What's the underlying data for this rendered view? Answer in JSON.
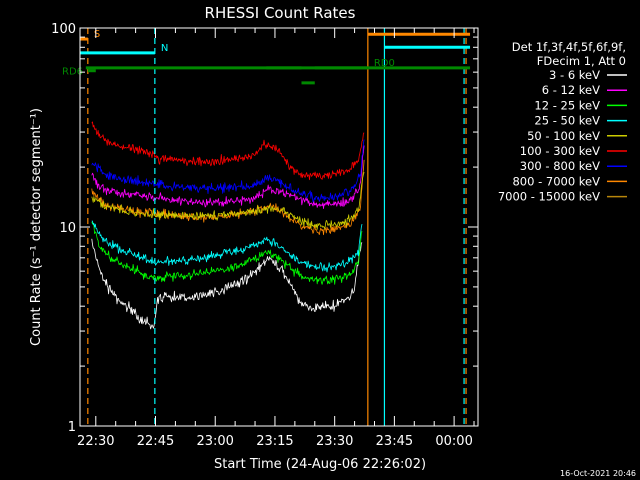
{
  "chart_data": {
    "type": "line",
    "title": "RHESSI Count Rates",
    "xlabel": "Start Time (24-Aug-06 22:26:02)",
    "ylabel": "Count Rate (s⁻¹ detector segment⁻¹)",
    "y_scale": "log",
    "ylim": [
      1,
      100
    ],
    "y_ticks": [
      "1",
      "10",
      "100"
    ],
    "x_ticks": [
      "22:30",
      "22:45",
      "23:00",
      "23:15",
      "23:30",
      "23:45",
      "00:00"
    ],
    "x_range": [
      "22:26:02",
      "00:06"
    ],
    "grid": false,
    "legend_position": "right",
    "legend_header": [
      "Det 1f,3f,4f,5f,6f,9f,",
      "FDecim 1, Att 0"
    ],
    "timestamp": "16-Oct-2021 20:46",
    "series": [
      {
        "name": "3 - 6 keV",
        "color": "#ffffff",
        "x": [
          "22:29",
          "22:31",
          "22:33",
          "22:35",
          "22:37",
          "22:39",
          "22:41",
          "22:43",
          "22:44:30",
          "22:45:30",
          "22:48",
          "22:52",
          "22:56",
          "23:00",
          "23:04",
          "23:08",
          "23:11",
          "23:13",
          "23:15",
          "23:17",
          "23:19",
          "23:21",
          "23:23",
          "23:25",
          "23:27",
          "23:29",
          "23:31",
          "23:33",
          "23:35",
          "23:37"
        ],
        "y": [
          8.5,
          6.0,
          5.0,
          4.5,
          4.1,
          3.8,
          3.5,
          3.3,
          3.1,
          4.3,
          4.5,
          4.4,
          4.5,
          4.7,
          5.0,
          5.5,
          6.2,
          7.0,
          6.6,
          6.0,
          5.1,
          4.3,
          4.0,
          3.9,
          4.0,
          4.0,
          4.1,
          4.3,
          4.8,
          9.0
        ]
      },
      {
        "name": "6 - 12 keV",
        "color": "#ff00ff",
        "x": [
          "22:29",
          "22:31",
          "22:34",
          "22:38",
          "22:42",
          "22:46",
          "22:50",
          "22:55",
          "23:00",
          "23:05",
          "23:10",
          "23:13",
          "23:16",
          "23:19",
          "23:22",
          "23:26",
          "23:30",
          "23:34",
          "23:36:30",
          "23:37:30"
        ],
        "y": [
          18,
          16,
          15,
          14.5,
          14.3,
          14,
          13.5,
          13.3,
          13.3,
          13.5,
          14,
          15.5,
          15.2,
          14.5,
          13.5,
          13,
          13,
          13.5,
          16,
          28
        ]
      },
      {
        "name": "12 - 25 keV",
        "color": "#00ff00",
        "x": [
          "22:29",
          "22:31",
          "22:34",
          "22:38",
          "22:42",
          "22:45",
          "22:48",
          "22:52",
          "22:56",
          "23:00",
          "23:04",
          "23:08",
          "23:11",
          "23:13",
          "23:15",
          "23:17",
          "23:19",
          "23:22",
          "23:25",
          "23:28",
          "23:31",
          "23:34",
          "23:36",
          "23:37"
        ],
        "y": [
          10.5,
          8,
          7,
          6.3,
          5.8,
          5.5,
          5.6,
          5.7,
          5.8,
          6,
          6.3,
          6.7,
          7,
          7.4,
          7.2,
          6.8,
          6.2,
          5.6,
          5.4,
          5.4,
          5.5,
          5.8,
          6.5,
          10
        ]
      },
      {
        "name": "25 - 50 keV",
        "color": "#00ffff",
        "x": [
          "22:29",
          "22:31",
          "22:34",
          "22:38",
          "22:42",
          "22:45",
          "22:48",
          "22:52",
          "22:56",
          "23:00",
          "23:04",
          "23:08",
          "23:11",
          "23:13",
          "23:15",
          "23:17",
          "23:19",
          "23:22",
          "23:25",
          "23:28",
          "23:31",
          "23:34",
          "23:36",
          "23:37"
        ],
        "y": [
          11,
          9,
          8,
          7.5,
          7,
          6.7,
          6.7,
          6.8,
          6.9,
          7.2,
          7.5,
          7.9,
          8.2,
          8.5,
          8.3,
          7.9,
          7.2,
          6.6,
          6.3,
          6.3,
          6.4,
          6.8,
          7.5,
          11
        ]
      },
      {
        "name": "50 - 100 keV",
        "color": "#cccc00",
        "x": [
          "22:29",
          "22:33",
          "22:38",
          "22:43",
          "22:48",
          "22:55",
          "23:02",
          "23:08",
          "23:12",
          "23:15",
          "23:18",
          "23:21",
          "23:25",
          "23:29",
          "23:33",
          "23:36",
          "23:37:30"
        ],
        "y": [
          14,
          12.5,
          12,
          11.6,
          11.4,
          11.3,
          11.5,
          11.8,
          12.2,
          12.5,
          11.8,
          10.8,
          10.3,
          10.3,
          10.6,
          12,
          20
        ]
      },
      {
        "name": "100 - 300 keV",
        "color": "#ff0000",
        "x": [
          "22:29",
          "22:31",
          "22:34",
          "22:38",
          "22:42",
          "22:46",
          "22:50",
          "22:55",
          "23:00",
          "23:05",
          "23:10",
          "23:12",
          "23:14",
          "23:16",
          "23:18",
          "23:20",
          "23:22",
          "23:25",
          "23:28",
          "23:31",
          "23:34",
          "23:36",
          "23:37:30"
        ],
        "y": [
          34,
          28,
          26,
          25,
          24,
          22,
          21.5,
          21.3,
          21.5,
          22,
          23,
          26,
          25.5,
          24.5,
          21,
          19,
          18.3,
          18,
          18,
          18.5,
          19.5,
          22,
          30
        ]
      },
      {
        "name": "300 - 800 keV",
        "color": "#0000ff",
        "x": [
          "22:29",
          "22:32",
          "22:36",
          "22:40",
          "22:45",
          "22:50",
          "22:55",
          "23:00",
          "23:05",
          "23:10",
          "23:13",
          "23:16",
          "23:19",
          "23:22",
          "23:26",
          "23:30",
          "23:34",
          "23:36:30",
          "23:37:30"
        ],
        "y": [
          21,
          18.5,
          17.5,
          17,
          16.5,
          16,
          15.7,
          15.6,
          15.8,
          16.3,
          17.5,
          17,
          15.5,
          14.5,
          14,
          14.2,
          15,
          18,
          28
        ]
      },
      {
        "name": "800 - 7000 keV",
        "color": "#ff8800",
        "x": [
          "22:29",
          "22:32",
          "22:36",
          "22:40",
          "22:45",
          "22:50",
          "22:55",
          "23:00",
          "23:05",
          "23:10",
          "23:13",
          "23:16",
          "23:19",
          "23:22",
          "23:26",
          "23:30",
          "23:34",
          "23:36:30",
          "23:37:30"
        ],
        "y": [
          15,
          13,
          12.3,
          12,
          11.7,
          11.4,
          11.3,
          11.3,
          11.5,
          12,
          12.7,
          12.3,
          11,
          10,
          9.6,
          9.7,
          10.3,
          12.5,
          22
        ]
      },
      {
        "name": "7000 - 15000 keV",
        "color": "#b8860b",
        "x": [],
        "y": []
      }
    ],
    "annotations": [
      {
        "text": "S",
        "color": "#ff8800",
        "type": "flag",
        "x_start": "22:26:02",
        "x_end": "22:28",
        "y": 88
      },
      {
        "text": "N",
        "color": "#00ffff",
        "type": "flag",
        "x_start": "22:26:02",
        "x_end": "22:44:50",
        "y": 75
      },
      {
        "text": "RD0",
        "color": "#008800",
        "type": "flag",
        "x_start": "22:27:30",
        "x_end": "23:38:20",
        "y": 63
      },
      {
        "text": "RD6",
        "color": "#008800",
        "type": "flag",
        "x_start": "22:28",
        "x_end": "22:30",
        "y": 61
      },
      {
        "text": "",
        "color": "#008800",
        "type": "flag",
        "x_start": "23:12:50",
        "x_end": "23:21:40",
        "y": 63
      },
      {
        "text": "",
        "color": "#008800",
        "type": "flag",
        "x_start": "23:25",
        "x_end": "00:04",
        "y": 63
      },
      {
        "text": "",
        "color": "#008800",
        "type": "flag",
        "x_start": "23:21:40",
        "x_end": "23:25",
        "y": 53
      },
      {
        "text": "",
        "color": "#ff8800",
        "type": "flag",
        "x_start": "23:38:20",
        "x_end": "00:04",
        "y": 93
      },
      {
        "text": "",
        "color": "#00ffff",
        "type": "flag",
        "x_start": "23:42:30",
        "x_end": "00:04",
        "y": 80
      },
      {
        "text": "",
        "color": "#ff8800",
        "type": "vline",
        "x": "22:28"
      },
      {
        "text": "",
        "color": "#00ffff",
        "type": "vline",
        "x": "22:44:50"
      },
      {
        "text": "",
        "color": "#ff8800",
        "type": "vline_solid",
        "x": "23:38:20"
      },
      {
        "text": "",
        "color": "#00ffff",
        "type": "vline_solid",
        "x": "23:42:30"
      },
      {
        "text": "",
        "color": "#00ffff",
        "type": "vline",
        "x": "00:02:30"
      },
      {
        "text": "",
        "color": "#ff8800",
        "type": "vline",
        "x": "00:03"
      }
    ]
  }
}
